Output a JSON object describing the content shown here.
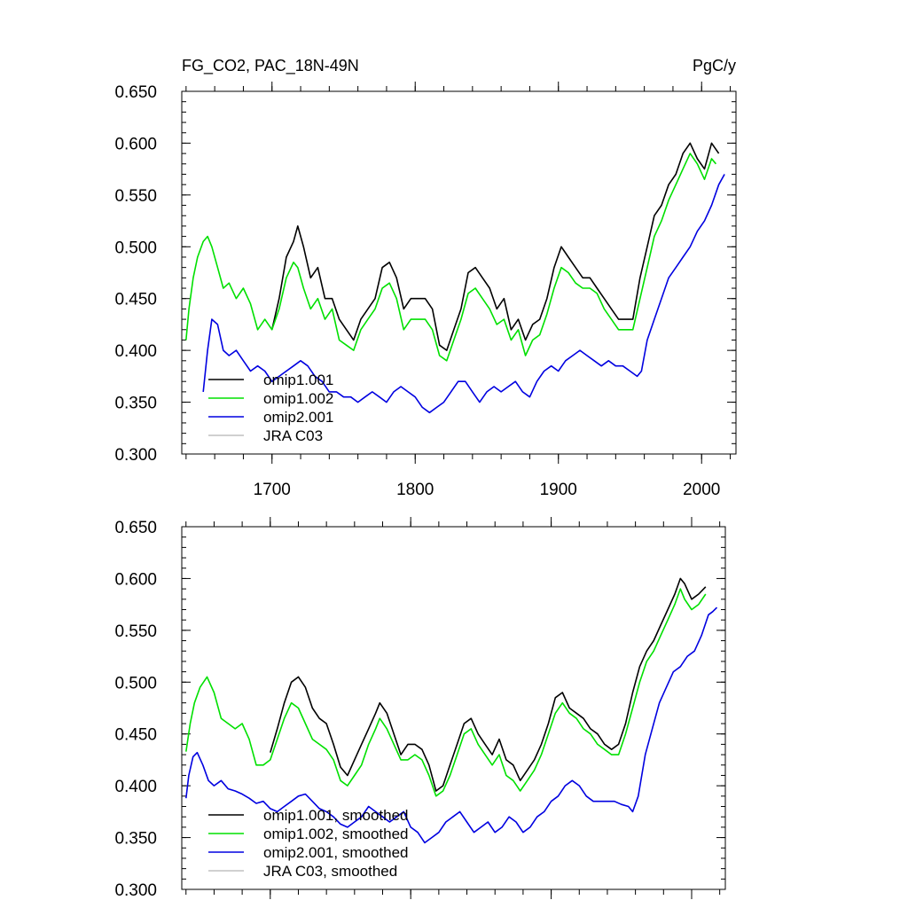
{
  "header": {
    "left_title": "FG_CO2, PAC_18N-49N",
    "right_title": "PgC/y"
  },
  "chart_data": [
    {
      "type": "line",
      "title": "FG_CO2, PAC_18N-49N",
      "units": "PgC/y",
      "xlim": [
        1637,
        2024
      ],
      "ylim": [
        0.3,
        0.65
      ],
      "yticks": [
        "0.300",
        "0.350",
        "0.400",
        "0.450",
        "0.500",
        "0.550",
        "0.600",
        "0.650"
      ],
      "ytick_values": [
        0.3,
        0.35,
        0.4,
        0.45,
        0.5,
        0.55,
        0.6,
        0.65
      ],
      "xticks": [
        "1700",
        "1800",
        "1900",
        "2000"
      ],
      "xtick_values": [
        1700,
        1800,
        1900,
        2000
      ],
      "grid": false,
      "legend": "lower-left",
      "series": [
        {
          "name": "omip1.001",
          "color": "#000000",
          "x": [
            1700,
            1705,
            1710,
            1715,
            1718,
            1722,
            1727,
            1732,
            1737,
            1742,
            1747,
            1752,
            1757,
            1762,
            1767,
            1772,
            1777,
            1782,
            1787,
            1792,
            1797,
            1802,
            1807,
            1812,
            1817,
            1822,
            1827,
            1832,
            1837,
            1842,
            1847,
            1852,
            1857,
            1862,
            1867,
            1872,
            1877,
            1882,
            1887,
            1892,
            1897,
            1902,
            1907,
            1912,
            1917,
            1922,
            1927,
            1932,
            1937,
            1942,
            1947,
            1952,
            1957,
            1962,
            1967,
            1972,
            1977,
            1982,
            1987,
            1992,
            1997,
            2002,
            2007,
            2012
          ],
          "y": [
            0.42,
            0.45,
            0.49,
            0.505,
            0.52,
            0.5,
            0.47,
            0.48,
            0.45,
            0.45,
            0.43,
            0.42,
            0.41,
            0.43,
            0.44,
            0.45,
            0.48,
            0.485,
            0.47,
            0.44,
            0.45,
            0.45,
            0.45,
            0.44,
            0.405,
            0.4,
            0.42,
            0.44,
            0.475,
            0.48,
            0.47,
            0.46,
            0.44,
            0.45,
            0.42,
            0.43,
            0.41,
            0.425,
            0.43,
            0.45,
            0.48,
            0.5,
            0.49,
            0.48,
            0.47,
            0.47,
            0.46,
            0.45,
            0.44,
            0.43,
            0.43,
            0.43,
            0.47,
            0.5,
            0.53,
            0.54,
            0.56,
            0.57,
            0.59,
            0.6,
            0.585,
            0.575,
            0.6,
            0.59
          ]
        },
        {
          "name": "omip1.002",
          "color": "#00e000",
          "x": [
            1640,
            1642,
            1645,
            1648,
            1652,
            1655,
            1658,
            1662,
            1666,
            1670,
            1675,
            1680,
            1685,
            1690,
            1695,
            1700,
            1705,
            1710,
            1715,
            1718,
            1722,
            1727,
            1732,
            1737,
            1742,
            1747,
            1752,
            1757,
            1762,
            1767,
            1772,
            1777,
            1782,
            1787,
            1792,
            1797,
            1802,
            1807,
            1812,
            1817,
            1822,
            1827,
            1832,
            1837,
            1842,
            1847,
            1852,
            1857,
            1862,
            1867,
            1872,
            1877,
            1882,
            1887,
            1892,
            1897,
            1902,
            1907,
            1912,
            1917,
            1922,
            1927,
            1932,
            1937,
            1942,
            1947,
            1952,
            1957,
            1962,
            1967,
            1972,
            1977,
            1982,
            1987,
            1992,
            1997,
            2002,
            2007,
            2010
          ],
          "y": [
            0.41,
            0.44,
            0.47,
            0.49,
            0.505,
            0.51,
            0.5,
            0.48,
            0.46,
            0.465,
            0.45,
            0.46,
            0.445,
            0.42,
            0.43,
            0.42,
            0.44,
            0.47,
            0.485,
            0.48,
            0.46,
            0.44,
            0.45,
            0.43,
            0.44,
            0.41,
            0.405,
            0.4,
            0.42,
            0.43,
            0.44,
            0.46,
            0.465,
            0.45,
            0.42,
            0.43,
            0.43,
            0.43,
            0.42,
            0.395,
            0.39,
            0.41,
            0.43,
            0.455,
            0.46,
            0.45,
            0.44,
            0.425,
            0.43,
            0.41,
            0.42,
            0.395,
            0.41,
            0.415,
            0.435,
            0.46,
            0.48,
            0.475,
            0.465,
            0.46,
            0.46,
            0.455,
            0.44,
            0.43,
            0.42,
            0.42,
            0.42,
            0.45,
            0.48,
            0.51,
            0.525,
            0.545,
            0.56,
            0.575,
            0.59,
            0.58,
            0.565,
            0.585,
            0.58
          ]
        },
        {
          "name": "omip2.001",
          "color": "#0000e0",
          "x": [
            1652,
            1655,
            1658,
            1662,
            1666,
            1670,
            1675,
            1680,
            1685,
            1690,
            1695,
            1700,
            1705,
            1710,
            1715,
            1720,
            1725,
            1730,
            1735,
            1740,
            1745,
            1750,
            1755,
            1760,
            1765,
            1770,
            1775,
            1780,
            1785,
            1790,
            1795,
            1800,
            1805,
            1810,
            1815,
            1820,
            1825,
            1830,
            1835,
            1840,
            1845,
            1850,
            1855,
            1860,
            1865,
            1870,
            1875,
            1880,
            1885,
            1890,
            1895,
            1900,
            1905,
            1910,
            1915,
            1920,
            1925,
            1930,
            1935,
            1940,
            1945,
            1950,
            1955,
            1958,
            1962,
            1967,
            1972,
            1977,
            1982,
            1987,
            1992,
            1997,
            2002,
            2007,
            2012,
            2016
          ],
          "y": [
            0.36,
            0.4,
            0.43,
            0.425,
            0.4,
            0.395,
            0.4,
            0.39,
            0.38,
            0.385,
            0.38,
            0.37,
            0.375,
            0.38,
            0.385,
            0.39,
            0.385,
            0.375,
            0.37,
            0.36,
            0.36,
            0.355,
            0.355,
            0.35,
            0.355,
            0.36,
            0.355,
            0.35,
            0.36,
            0.365,
            0.36,
            0.355,
            0.345,
            0.34,
            0.345,
            0.35,
            0.36,
            0.37,
            0.37,
            0.36,
            0.35,
            0.36,
            0.365,
            0.36,
            0.365,
            0.37,
            0.36,
            0.355,
            0.37,
            0.38,
            0.385,
            0.38,
            0.39,
            0.395,
            0.4,
            0.395,
            0.39,
            0.385,
            0.39,
            0.385,
            0.385,
            0.38,
            0.375,
            0.38,
            0.41,
            0.43,
            0.45,
            0.47,
            0.48,
            0.49,
            0.5,
            0.515,
            0.525,
            0.54,
            0.56,
            0.57
          ]
        },
        {
          "name": "JRA C03",
          "color": "#c0c0c0",
          "x": [],
          "y": []
        }
      ]
    },
    {
      "type": "line",
      "xlim": [
        1637,
        2024
      ],
      "ylim": [
        0.3,
        0.65
      ],
      "yticks": [
        "0.300",
        "0.350",
        "0.400",
        "0.450",
        "0.500",
        "0.550",
        "0.600",
        "0.650"
      ],
      "ytick_values": [
        0.3,
        0.35,
        0.4,
        0.45,
        0.5,
        0.55,
        0.6,
        0.65
      ],
      "xtick_values": [
        1700,
        1800,
        1900,
        2000
      ],
      "grid": false,
      "legend": "lower-left",
      "series": [
        {
          "name": "omip1.001, smoothed",
          "color": "#000000",
          "x": [
            1700,
            1705,
            1710,
            1715,
            1720,
            1725,
            1730,
            1735,
            1740,
            1745,
            1750,
            1755,
            1760,
            1765,
            1770,
            1775,
            1778,
            1783,
            1788,
            1793,
            1798,
            1803,
            1808,
            1813,
            1818,
            1823,
            1828,
            1833,
            1838,
            1843,
            1848,
            1853,
            1858,
            1863,
            1868,
            1873,
            1878,
            1883,
            1888,
            1893,
            1898,
            1903,
            1908,
            1913,
            1918,
            1923,
            1928,
            1933,
            1938,
            1943,
            1948,
            1953,
            1958,
            1963,
            1968,
            1973,
            1978,
            1983,
            1988,
            1992,
            1995,
            2000,
            2005,
            2010
          ],
          "y": [
            0.432,
            0.455,
            0.48,
            0.5,
            0.505,
            0.495,
            0.475,
            0.465,
            0.46,
            0.44,
            0.418,
            0.41,
            0.425,
            0.44,
            0.455,
            0.47,
            0.48,
            0.47,
            0.45,
            0.43,
            0.44,
            0.44,
            0.435,
            0.42,
            0.395,
            0.4,
            0.42,
            0.44,
            0.46,
            0.465,
            0.45,
            0.44,
            0.43,
            0.445,
            0.425,
            0.42,
            0.405,
            0.415,
            0.425,
            0.44,
            0.46,
            0.485,
            0.49,
            0.475,
            0.47,
            0.465,
            0.455,
            0.45,
            0.44,
            0.435,
            0.44,
            0.46,
            0.49,
            0.515,
            0.53,
            0.54,
            0.555,
            0.57,
            0.585,
            0.6,
            0.595,
            0.58,
            0.585,
            0.592
          ]
        },
        {
          "name": "omip1.002, smoothed",
          "color": "#00e000",
          "x": [
            1640,
            1643,
            1646,
            1650,
            1655,
            1660,
            1665,
            1670,
            1675,
            1680,
            1685,
            1690,
            1695,
            1700,
            1705,
            1710,
            1715,
            1720,
            1725,
            1730,
            1735,
            1740,
            1745,
            1750,
            1755,
            1760,
            1765,
            1770,
            1775,
            1778,
            1783,
            1788,
            1793,
            1798,
            1803,
            1808,
            1813,
            1818,
            1823,
            1828,
            1833,
            1838,
            1843,
            1848,
            1853,
            1858,
            1863,
            1868,
            1873,
            1878,
            1883,
            1888,
            1893,
            1898,
            1903,
            1908,
            1913,
            1918,
            1923,
            1928,
            1933,
            1938,
            1943,
            1948,
            1953,
            1958,
            1963,
            1968,
            1973,
            1978,
            1983,
            1988,
            1992,
            1995,
            2000,
            2005,
            2010
          ],
          "y": [
            0.433,
            0.46,
            0.48,
            0.495,
            0.505,
            0.49,
            0.465,
            0.46,
            0.455,
            0.46,
            0.445,
            0.42,
            0.42,
            0.425,
            0.445,
            0.465,
            0.48,
            0.475,
            0.46,
            0.445,
            0.44,
            0.435,
            0.425,
            0.405,
            0.4,
            0.41,
            0.42,
            0.44,
            0.455,
            0.465,
            0.455,
            0.44,
            0.425,
            0.425,
            0.43,
            0.425,
            0.41,
            0.39,
            0.395,
            0.41,
            0.43,
            0.45,
            0.455,
            0.44,
            0.43,
            0.42,
            0.43,
            0.41,
            0.405,
            0.395,
            0.405,
            0.415,
            0.43,
            0.45,
            0.47,
            0.48,
            0.47,
            0.465,
            0.455,
            0.45,
            0.44,
            0.435,
            0.43,
            0.43,
            0.45,
            0.475,
            0.5,
            0.52,
            0.53,
            0.545,
            0.56,
            0.575,
            0.59,
            0.58,
            0.57,
            0.575,
            0.585
          ]
        },
        {
          "name": "omip2.001, smoothed",
          "color": "#0000e0",
          "x": [
            1640,
            1642,
            1645,
            1648,
            1652,
            1656,
            1660,
            1665,
            1670,
            1675,
            1680,
            1685,
            1690,
            1695,
            1700,
            1705,
            1710,
            1715,
            1720,
            1725,
            1730,
            1735,
            1740,
            1745,
            1750,
            1755,
            1760,
            1765,
            1770,
            1775,
            1780,
            1785,
            1790,
            1795,
            1800,
            1805,
            1810,
            1815,
            1820,
            1825,
            1830,
            1835,
            1840,
            1845,
            1850,
            1855,
            1860,
            1865,
            1870,
            1875,
            1880,
            1885,
            1890,
            1895,
            1900,
            1905,
            1910,
            1915,
            1920,
            1925,
            1930,
            1935,
            1940,
            1945,
            1950,
            1955,
            1958,
            1962,
            1967,
            1972,
            1977,
            1982,
            1987,
            1992,
            1997,
            2002,
            2007,
            2012,
            2015,
            2018
          ],
          "y": [
            0.388,
            0.41,
            0.428,
            0.432,
            0.42,
            0.405,
            0.4,
            0.405,
            0.397,
            0.395,
            0.392,
            0.388,
            0.383,
            0.385,
            0.378,
            0.375,
            0.38,
            0.385,
            0.39,
            0.392,
            0.385,
            0.378,
            0.375,
            0.37,
            0.363,
            0.36,
            0.365,
            0.37,
            0.38,
            0.375,
            0.37,
            0.365,
            0.37,
            0.375,
            0.36,
            0.355,
            0.345,
            0.35,
            0.355,
            0.365,
            0.37,
            0.375,
            0.365,
            0.355,
            0.36,
            0.365,
            0.355,
            0.36,
            0.37,
            0.365,
            0.355,
            0.36,
            0.37,
            0.375,
            0.385,
            0.39,
            0.4,
            0.405,
            0.4,
            0.39,
            0.385,
            0.385,
            0.385,
            0.385,
            0.382,
            0.38,
            0.375,
            0.39,
            0.43,
            0.455,
            0.48,
            0.495,
            0.51,
            0.515,
            0.525,
            0.53,
            0.545,
            0.565,
            0.568,
            0.572
          ]
        },
        {
          "name": "JRA C03, smoothed",
          "color": "#c0c0c0",
          "x": [],
          "y": []
        }
      ]
    }
  ]
}
